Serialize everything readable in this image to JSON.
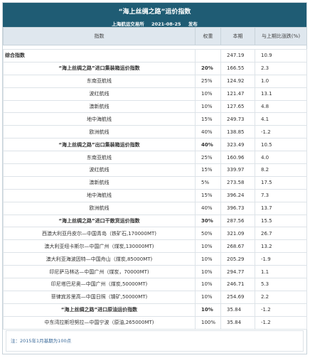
{
  "header": {
    "title": "“海上丝绸之路”运价指数",
    "publisher": "上海航运交易所",
    "date": "2021-08-25",
    "action": "发布"
  },
  "table": {
    "columns": [
      "指数",
      "权重",
      "本期",
      "与上期比涨跌(%)"
    ],
    "summary": {
      "name": "综合指数",
      "current": "247.19",
      "change": "10.9"
    },
    "sections": [
      {
        "name": "“海上丝绸之路”进口集装箱运价指数",
        "weight": "20%",
        "current": "166.55",
        "change": "2.3",
        "routes": [
          [
            "东南亚航线",
            "25%",
            "124.92",
            "1.0"
          ],
          [
            "波红航线",
            "10%",
            "121.47",
            "13.1"
          ],
          [
            "澳新航线",
            "10%",
            "127.65",
            "4.8"
          ],
          [
            "地中海航线",
            "15%",
            "249.73",
            "4.1"
          ],
          [
            "欧洲航线",
            "40%",
            "138.85",
            "-1.2"
          ]
        ]
      },
      {
        "name": "“海上丝绸之路”出口集装箱运价指数",
        "weight": "40%",
        "current": "323.49",
        "change": "10.5",
        "routes": [
          [
            "东南亚航线",
            "25%",
            "160.96",
            "4.0"
          ],
          [
            "波红航线",
            "15%",
            "339.97",
            "8.2"
          ],
          [
            "澳新航线",
            "5%",
            "273.58",
            "17.5"
          ],
          [
            "地中海航线",
            "15%",
            "396.24",
            "7.3"
          ],
          [
            "欧洲航线",
            "40%",
            "396.73",
            "13.7"
          ]
        ]
      },
      {
        "name": "“海上丝绸之路”进口干散货运价指数",
        "weight": "30%",
        "current": "287.56",
        "change": "15.5",
        "routes": [
          [
            "西澳大利亚丹皮尔—中国青岛（铁矿石,170000MT)",
            "50%",
            "321.09",
            "26.7"
          ],
          [
            "澳大利亚纽卡斯尔—中国广州（煤炭,130000MT)",
            "10%",
            "268.67",
            "13.2"
          ],
          [
            "澳大利亚海波因特—中国舟山（煤炭,85000MT)",
            "10%",
            "205.29",
            "-1.9"
          ],
          [
            "印尼萨马林达—中国广州（煤炭，70000MT)",
            "10%",
            "294.77",
            "1.1"
          ],
          [
            "印尼塔巴尼奥—中国广州（煤炭,50000MT)",
            "10%",
            "246.71",
            "5.3"
          ],
          [
            "菲律宾苏里高—中国日照（镍矿,50000MT)",
            "10%",
            "254.69",
            "2.2"
          ]
        ]
      },
      {
        "name": "“海上丝绸之路”进口原油运价指数",
        "weight": "10%",
        "current": "35.84",
        "change": "-1.2",
        "routes": [
          [
            "中东湾拉斯坦努拉—中国宁波（原油,265000MT)",
            "100%",
            "35.84",
            "-1.2"
          ]
        ]
      }
    ]
  },
  "footer": {
    "note": "注：2015年1月基期为100点"
  }
}
